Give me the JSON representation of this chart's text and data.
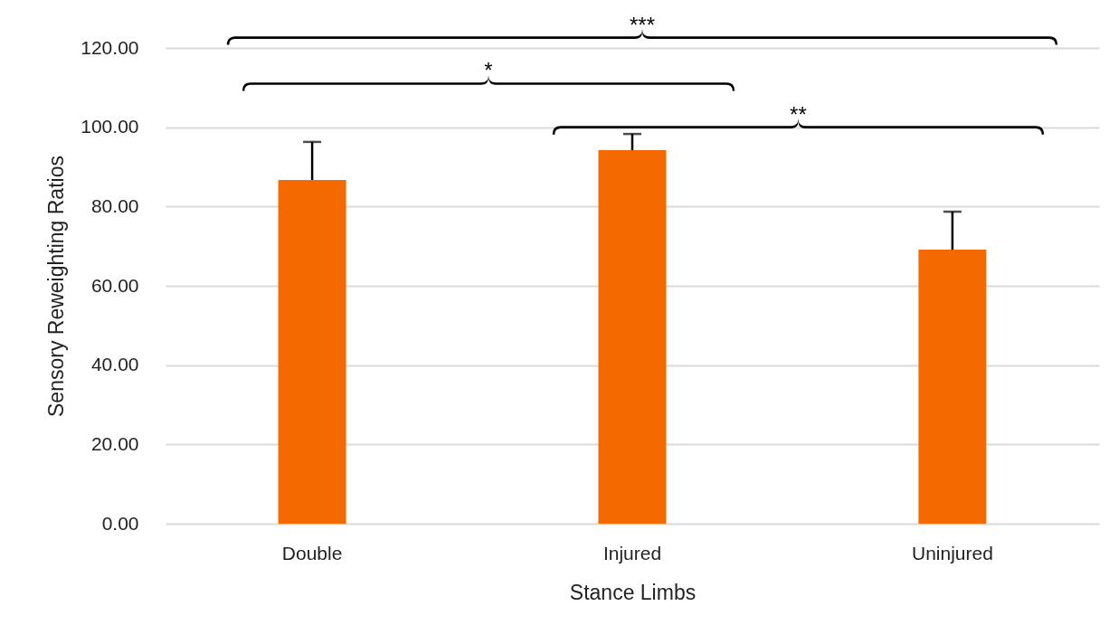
{
  "chart_data": {
    "type": "bar",
    "xlabel": "Stance Limbs",
    "ylabel": "Sensory Reweighting Ratios",
    "categories": [
      "Double",
      "Injured",
      "Uninjured"
    ],
    "values": [
      86.7,
      94.2,
      69.1
    ],
    "errors": [
      [
        86.7,
        96.3
      ],
      [
        94.2,
        98.3
      ],
      [
        69.1,
        78.7
      ]
    ],
    "color": "#f46a00",
    "ylim": [
      0,
      120
    ],
    "yticks": [
      {
        "value": 0,
        "label": "0.00"
      },
      {
        "value": 20,
        "label": "20.00"
      },
      {
        "value": 40,
        "label": "40.00"
      },
      {
        "value": 60,
        "label": "60.00"
      },
      {
        "value": 80,
        "label": "80.00"
      },
      {
        "value": 100,
        "label": "100.00"
      },
      {
        "value": 120,
        "label": "120.00"
      }
    ],
    "grid": "y",
    "annotations": [
      "***",
      "*",
      "**"
    ]
  }
}
